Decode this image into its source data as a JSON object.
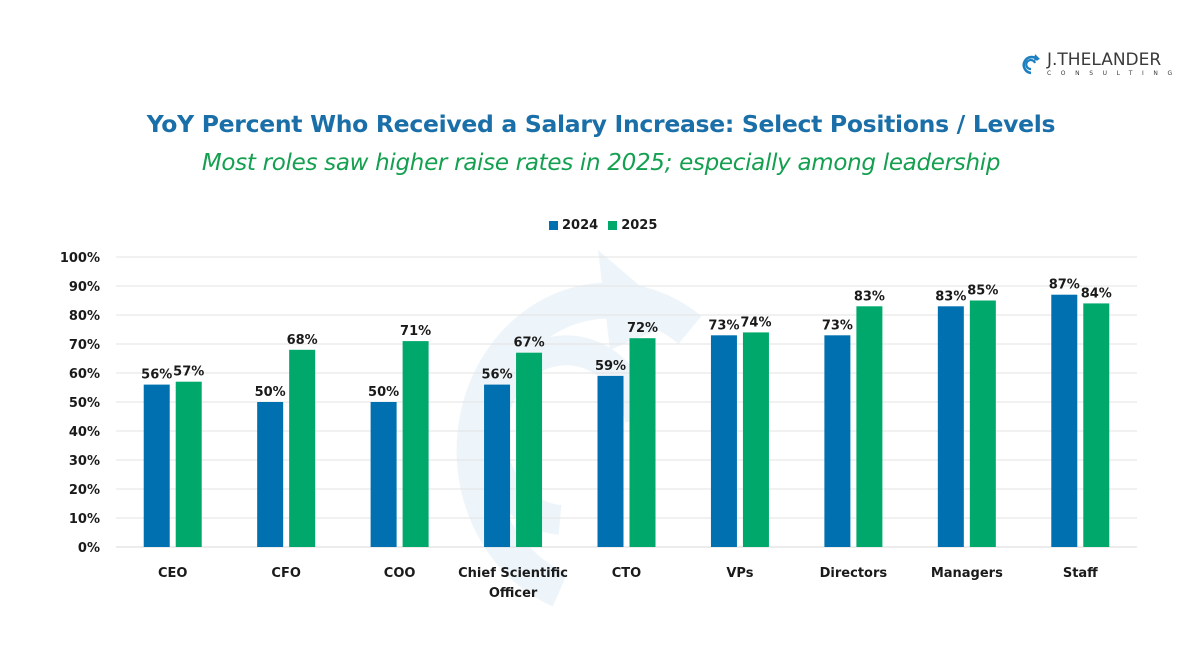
{
  "logo": {
    "name": "J.THELANDER",
    "sub": "CONSULTING",
    "color": "#1b7fc0"
  },
  "header": {
    "title": "YoY Percent Who Received a Salary Increase: Select Positions / Levels",
    "subtitle": "Most roles saw higher raise rates in 2025; especially among leadership"
  },
  "chart_data": {
    "type": "bar",
    "title": "YoY Percent Who Received a Salary Increase: Select Positions / Levels",
    "subtitle": "Most roles saw higher raise rates in 2025; especially among leadership",
    "xlabel": "",
    "ylabel": "",
    "categories": [
      "CEO",
      "CFO",
      "COO",
      "Chief Scientific Officer",
      "CTO",
      "VPs",
      "Directors",
      "Managers",
      "Staff"
    ],
    "category_lines": [
      [
        "CEO"
      ],
      [
        "CFO"
      ],
      [
        "COO"
      ],
      [
        "Chief Scientific",
        "Officer"
      ],
      [
        "CTO"
      ],
      [
        "VPs"
      ],
      [
        "Directors"
      ],
      [
        "Managers"
      ],
      [
        "Staff"
      ]
    ],
    "series": [
      {
        "name": "2024",
        "color": "#0070b0",
        "values": [
          56,
          50,
          50,
          56,
          59,
          73,
          73,
          83,
          87
        ],
        "labels": [
          "56%",
          "50%",
          "50%",
          "56%",
          "59%",
          "73%",
          "73%",
          "83%",
          "87%"
        ]
      },
      {
        "name": "2025",
        "color": "#00a86b",
        "values": [
          57,
          68,
          71,
          67,
          72,
          74,
          83,
          85,
          84
        ],
        "labels": [
          "57%",
          "68%",
          "71%",
          "67%",
          "72%",
          "74%",
          "83%",
          "85%",
          "84%"
        ]
      }
    ],
    "ylim": [
      0,
      100
    ],
    "yticks": [
      0,
      10,
      20,
      30,
      40,
      50,
      60,
      70,
      80,
      90,
      100
    ],
    "ytick_labels": [
      "0%",
      "10%",
      "20%",
      "30%",
      "40%",
      "50%",
      "60%",
      "70%",
      "80%",
      "90%",
      "100%"
    ],
    "grid": true,
    "legend_position": "top-center",
    "data_labels": true
  },
  "legend": {
    "items": [
      {
        "label": "2024",
        "color": "#0070b0"
      },
      {
        "label": "2025",
        "color": "#00a86b"
      }
    ]
  }
}
